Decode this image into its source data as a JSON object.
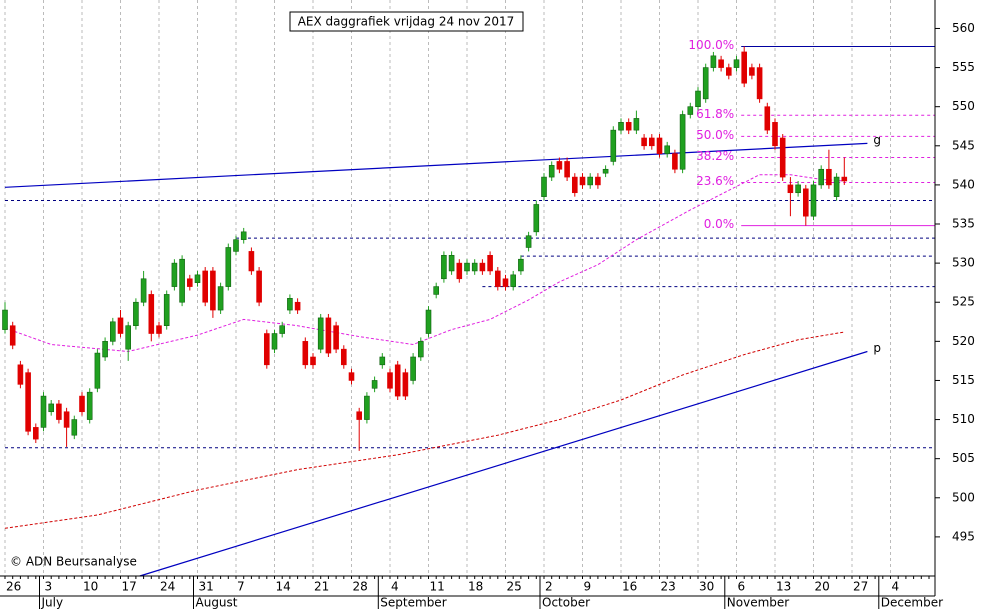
{
  "chart_data": {
    "type": "candlestick",
    "title": "AEX daggrafiek vrijdag 24 nov 2017",
    "copyright": "© ADN Beursanalyse",
    "up_color": "#20a020",
    "down_color": "#e00000",
    "ylim": [
      490,
      563
    ],
    "yticks": [
      495,
      500,
      505,
      510,
      515,
      520,
      525,
      530,
      535,
      540,
      545,
      550,
      555,
      560
    ],
    "categories": [
      "26",
      null,
      null,
      null,
      null,
      "3",
      null,
      null,
      null,
      null,
      "10",
      null,
      null,
      null,
      null,
      "17",
      null,
      null,
      null,
      null,
      "24",
      null,
      null,
      null,
      null,
      "31",
      null,
      null,
      null,
      null,
      "7",
      null,
      null,
      null,
      null,
      "14",
      null,
      null,
      null,
      null,
      "21",
      null,
      null,
      null,
      null,
      "28",
      null,
      null,
      null,
      null,
      "4",
      null,
      null,
      null,
      null,
      "11",
      null,
      null,
      null,
      null,
      "18",
      null,
      null,
      null,
      null,
      "25",
      null,
      null,
      null,
      null,
      "2",
      null,
      null,
      null,
      null,
      "9",
      null,
      null,
      null,
      null,
      "16",
      null,
      null,
      null,
      null,
      "23",
      null,
      null,
      null,
      null,
      "30",
      null,
      null,
      null,
      null,
      "6",
      null,
      null,
      null,
      null,
      "13",
      null,
      null,
      null,
      null,
      "20",
      null,
      null,
      null,
      null,
      "27",
      null,
      null,
      null,
      null,
      "4",
      null,
      null,
      null,
      null,
      null
    ],
    "months": [
      {
        "label": "July",
        "start": 5
      },
      {
        "label": "August",
        "start": 25
      },
      {
        "label": "September",
        "start": 49
      },
      {
        "label": "October",
        "start": 70
      },
      {
        "label": "November",
        "start": 94
      },
      {
        "label": "December",
        "start": 114
      }
    ],
    "ohlc": [
      [
        521.5,
        525,
        521,
        524
      ],
      [
        522,
        522.5,
        519,
        519.5
      ],
      [
        517,
        517.5,
        514,
        514.5
      ],
      [
        516,
        516.5,
        508,
        508.5
      ],
      [
        509,
        509.5,
        507,
        507.5
      ],
      [
        509,
        513.5,
        508.5,
        513
      ],
      [
        511,
        512.5,
        510.5,
        512
      ],
      [
        512,
        512.5,
        509.5,
        510
      ],
      [
        511,
        511.5,
        506.5,
        509
      ],
      [
        508,
        510.5,
        507.5,
        510
      ],
      [
        513,
        513.5,
        510.5,
        511
      ],
      [
        510,
        514,
        509.5,
        513.5
      ],
      [
        514,
        519,
        513.5,
        518.5
      ],
      [
        518,
        520.5,
        517.5,
        520
      ],
      [
        520,
        523,
        519.5,
        522.5
      ],
      [
        523,
        524,
        520.5,
        521
      ],
      [
        519,
        522.5,
        517.5,
        522
      ],
      [
        522,
        525.5,
        521.5,
        525
      ],
      [
        525,
        529,
        524.5,
        528
      ],
      [
        526,
        526.5,
        520,
        521
      ],
      [
        522,
        522.5,
        520.5,
        521
      ],
      [
        522,
        526.5,
        521.5,
        526
      ],
      [
        527,
        530.5,
        526.5,
        530
      ],
      [
        525,
        531,
        524.5,
        530.5
      ],
      [
        528,
        528.5,
        526.5,
        527
      ],
      [
        527.5,
        529,
        527,
        528.5
      ],
      [
        529,
        529.5,
        524.5,
        525
      ],
      [
        529,
        529.5,
        523,
        524
      ],
      [
        524,
        527.5,
        523.5,
        527
      ],
      [
        527,
        532.5,
        526.5,
        532
      ],
      [
        531.5,
        533.5,
        531,
        533
      ],
      [
        533,
        534.5,
        532.5,
        534
      ],
      [
        531.5,
        532,
        528.5,
        529
      ],
      [
        529,
        529.5,
        524.5,
        525
      ],
      [
        521,
        521.5,
        516.5,
        517
      ],
      [
        519,
        521.5,
        518.5,
        521
      ],
      [
        521,
        522.5,
        520.5,
        522
      ],
      [
        524,
        526,
        523.5,
        525.5
      ],
      [
        525,
        525.5,
        523.5,
        524
      ],
      [
        520,
        520.5,
        516.5,
        517
      ],
      [
        518,
        518.5,
        516.5,
        517
      ],
      [
        519,
        523.5,
        518.5,
        523
      ],
      [
        523,
        523.5,
        518,
        518.5
      ],
      [
        522,
        522.5,
        518.5,
        519
      ],
      [
        519,
        519.5,
        516.5,
        517
      ],
      [
        516,
        516.5,
        514.5,
        515
      ],
      [
        511,
        511.5,
        506,
        510
      ],
      [
        510,
        513.5,
        509.5,
        513
      ],
      [
        514,
        515.5,
        513.5,
        515
      ],
      [
        517,
        518.5,
        516.5,
        518
      ],
      [
        516,
        516.5,
        513.5,
        514
      ],
      [
        517,
        517.5,
        512.5,
        513
      ],
      [
        516,
        516.5,
        512.5,
        513
      ],
      [
        515,
        518.5,
        514.5,
        518
      ],
      [
        518,
        520.5,
        517.5,
        520
      ],
      [
        521,
        524.5,
        520.5,
        524
      ],
      [
        526,
        527.5,
        525.5,
        527
      ],
      [
        528,
        531.5,
        527.5,
        531
      ],
      [
        529,
        531.5,
        528.5,
        531
      ],
      [
        530,
        530.5,
        527.5,
        528
      ],
      [
        529,
        530.5,
        528.5,
        530
      ],
      [
        529,
        530.5,
        528.5,
        530
      ],
      [
        530,
        530.5,
        528.5,
        529
      ],
      [
        531,
        531.5,
        528.5,
        529
      ],
      [
        529,
        529.5,
        526.5,
        527
      ],
      [
        528,
        528.5,
        526.5,
        527
      ],
      [
        527,
        529,
        526.5,
        528.5
      ],
      [
        529,
        531,
        528.5,
        530.5
      ],
      [
        532,
        534,
        531.5,
        533.5
      ],
      [
        534,
        538,
        533.5,
        537.5
      ],
      [
        538.5,
        541.5,
        538,
        541
      ],
      [
        541,
        543,
        540.5,
        542.5
      ],
      [
        543,
        543.5,
        541.5,
        542
      ],
      [
        543,
        543.5,
        540.5,
        541
      ],
      [
        541,
        541.5,
        538.5,
        539
      ],
      [
        541,
        541.5,
        539.5,
        540
      ],
      [
        540,
        541.5,
        539.5,
        541
      ],
      [
        541,
        541.5,
        539.5,
        540
      ],
      [
        541.5,
        542.5,
        541,
        542
      ],
      [
        543,
        547.5,
        542.5,
        547
      ],
      [
        547,
        548.5,
        546.5,
        548
      ],
      [
        548,
        548.5,
        546.5,
        547
      ],
      [
        547,
        549.5,
        546.5,
        548.5
      ],
      [
        546,
        546.5,
        544.5,
        545
      ],
      [
        546,
        546.5,
        544.5,
        545
      ],
      [
        546,
        546.5,
        543.5,
        544
      ],
      [
        544,
        545.5,
        543.5,
        545
      ],
      [
        544,
        544.5,
        541.5,
        542
      ],
      [
        542,
        549.5,
        541.5,
        549
      ],
      [
        549,
        550.5,
        548.5,
        550
      ],
      [
        550,
        552.5,
        549.5,
        552
      ],
      [
        551,
        555.5,
        550.5,
        555
      ],
      [
        555,
        557,
        554.5,
        556.5
      ],
      [
        556,
        556.5,
        554.5,
        555
      ],
      [
        555,
        555.5,
        553.5,
        554
      ],
      [
        555,
        556.5,
        554.5,
        556
      ],
      [
        557,
        557.7,
        552.5,
        553
      ],
      [
        555,
        555.5,
        553.5,
        554
      ],
      [
        555,
        555.5,
        550.5,
        551
      ],
      [
        550,
        550.5,
        546.5,
        547
      ],
      [
        548,
        548.5,
        544.5,
        545
      ],
      [
        546,
        546.5,
        540.5,
        541
      ],
      [
        540,
        541,
        536,
        539
      ],
      [
        539,
        540.5,
        538.5,
        540
      ],
      [
        539.5,
        540,
        534.8,
        536
      ],
      [
        536,
        540.5,
        535.5,
        540
      ],
      [
        540,
        542.5,
        539.5,
        542
      ],
      [
        542,
        544.5,
        539.5,
        540
      ],
      [
        538.5,
        541.5,
        538,
        541
      ],
      [
        541,
        543.5,
        540,
        540.5
      ],
      null,
      null,
      null,
      null,
      null,
      null,
      null,
      null,
      null,
      null,
      null
    ],
    "moving_averages": [
      {
        "color": "#e020e0",
        "x": [
          0,
          6,
          16,
          25,
          31,
          38,
          46,
          53,
          58,
          63,
          68,
          72,
          77,
          82,
          89,
          93,
          98,
          102,
          106,
          109
        ],
        "values": [
          521.7,
          519.6,
          518.7,
          520.8,
          522.8,
          522,
          520.6,
          519.6,
          521.5,
          522.8,
          525.3,
          527.6,
          529.8,
          533,
          536.8,
          538.8,
          541.3,
          541.3,
          540.7,
          540.5
        ]
      },
      {
        "color": "#d00000",
        "x": [
          0,
          12,
          25,
          38,
          51,
          64,
          72,
          80,
          88,
          96,
          103,
          109
        ],
        "values": [
          496.1,
          497.8,
          501,
          503.6,
          505.5,
          508,
          510,
          512.5,
          515.7,
          518.3,
          520.2,
          521.2
        ]
      }
    ],
    "trendlines": [
      {
        "label": "g",
        "color": "#0000c0",
        "x": [
          0,
          112
        ],
        "values": [
          539.7,
          545.3
        ]
      },
      {
        "label": "p",
        "color": "#0000c0",
        "x": [
          17.5,
          112
        ],
        "values": [
          490,
          518.7
        ]
      }
    ],
    "supports": [
      {
        "value": 538,
        "start": 0
      },
      {
        "value": 533.2,
        "start": 30
      },
      {
        "value": 530.9,
        "start": 67
      },
      {
        "value": 527,
        "start": 62
      },
      {
        "value": 506.4,
        "start": 0
      }
    ],
    "fib_levels": [
      {
        "label": "100.0%",
        "value": 557.7
      },
      {
        "label": "61.8%",
        "value": 548.9
      },
      {
        "label": "50.0%",
        "value": 546.2
      },
      {
        "label": "38.2%",
        "value": 543.5
      },
      {
        "label": "23.6%",
        "value": 540.3
      },
      {
        "label": "0.0%",
        "value": 534.8
      }
    ],
    "fib_start": 96
  }
}
